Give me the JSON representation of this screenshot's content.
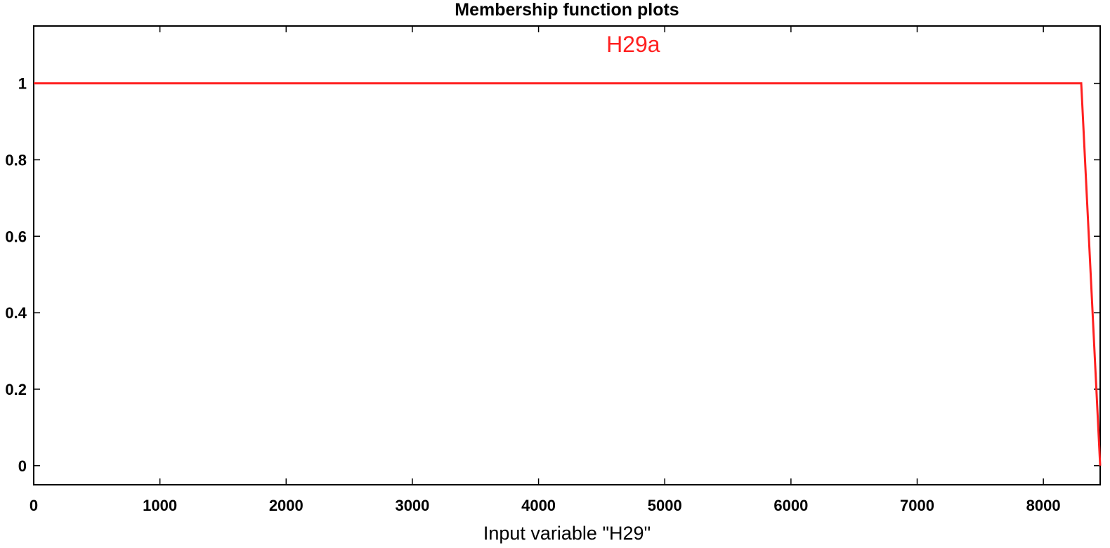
{
  "chart_data": {
    "type": "line",
    "title": "Membership function plots",
    "xlabel": "Input variable \"H29\"",
    "ylabel": "",
    "xlim": [
      0,
      8450
    ],
    "ylim": [
      -0.05,
      1.15
    ],
    "x_ticks": [
      0,
      1000,
      2000,
      3000,
      4000,
      5000,
      6000,
      7000,
      8000
    ],
    "y_ticks": [
      0,
      0.2,
      0.4,
      0.6,
      0.8,
      1
    ],
    "grid": false,
    "series": [
      {
        "name": "H29a",
        "color": "#ff2020",
        "x": [
          0,
          8300,
          8450
        ],
        "y": [
          1,
          1,
          0
        ]
      }
    ],
    "annotations": [
      {
        "text": "H29a",
        "x": 4750,
        "y": 1.1,
        "color": "#ff2020"
      }
    ]
  }
}
